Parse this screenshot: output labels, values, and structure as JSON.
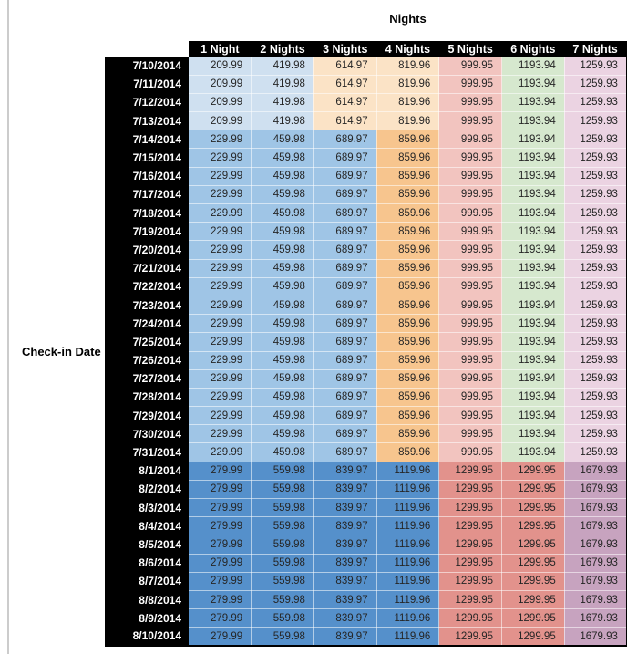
{
  "page": {
    "title": "Nights",
    "row_axis_label": "Check-in Date"
  },
  "colors": {
    "header_bg": "#000000",
    "header_text": "#ffffff",
    "cell_text": "#262626",
    "left_rule": "#cccccc",
    "table_border": "#000000",
    "group_cell_colors": {
      "low": [
        "#cfe0f0",
        "#cfe0f0",
        "#fbe3c6",
        "#fbe3c6",
        "#f2c4bf",
        "#d6e8ce",
        "#ebd3e2"
      ],
      "mid": [
        "#9fc5e6",
        "#9fc5e6",
        "#9fc5e6",
        "#f7c58e",
        "#f2c4bf",
        "#d6e8ce",
        "#ebd3e2"
      ],
      "high": [
        "#5590cb",
        "#5590cb",
        "#5590cb",
        "#5590cb",
        "#e2928c",
        "#e2928c",
        "#c7a3bf"
      ]
    }
  },
  "chart_data": {
    "type": "table",
    "title": "Nights",
    "row_header_label": "Check-in Date",
    "columns": [
      "1 Night",
      "2 Nights",
      "3 Nights",
      "4 Nights",
      "5 Nights",
      "6 Nights",
      "7 Nights"
    ],
    "rows": [
      {
        "date": "7/10/2014",
        "group": "low",
        "values": [
          209.99,
          419.98,
          614.97,
          819.96,
          999.95,
          1193.94,
          1259.93
        ]
      },
      {
        "date": "7/11/2014",
        "group": "low",
        "values": [
          209.99,
          419.98,
          614.97,
          819.96,
          999.95,
          1193.94,
          1259.93
        ]
      },
      {
        "date": "7/12/2014",
        "group": "low",
        "values": [
          209.99,
          419.98,
          614.97,
          819.96,
          999.95,
          1193.94,
          1259.93
        ]
      },
      {
        "date": "7/13/2014",
        "group": "low",
        "values": [
          209.99,
          419.98,
          614.97,
          819.96,
          999.95,
          1193.94,
          1259.93
        ]
      },
      {
        "date": "7/14/2014",
        "group": "mid",
        "values": [
          229.99,
          459.98,
          689.97,
          859.96,
          999.95,
          1193.94,
          1259.93
        ]
      },
      {
        "date": "7/15/2014",
        "group": "mid",
        "values": [
          229.99,
          459.98,
          689.97,
          859.96,
          999.95,
          1193.94,
          1259.93
        ]
      },
      {
        "date": "7/16/2014",
        "group": "mid",
        "values": [
          229.99,
          459.98,
          689.97,
          859.96,
          999.95,
          1193.94,
          1259.93
        ]
      },
      {
        "date": "7/17/2014",
        "group": "mid",
        "values": [
          229.99,
          459.98,
          689.97,
          859.96,
          999.95,
          1193.94,
          1259.93
        ]
      },
      {
        "date": "7/18/2014",
        "group": "mid",
        "values": [
          229.99,
          459.98,
          689.97,
          859.96,
          999.95,
          1193.94,
          1259.93
        ]
      },
      {
        "date": "7/19/2014",
        "group": "mid",
        "values": [
          229.99,
          459.98,
          689.97,
          859.96,
          999.95,
          1193.94,
          1259.93
        ]
      },
      {
        "date": "7/20/2014",
        "group": "mid",
        "values": [
          229.99,
          459.98,
          689.97,
          859.96,
          999.95,
          1193.94,
          1259.93
        ]
      },
      {
        "date": "7/21/2014",
        "group": "mid",
        "values": [
          229.99,
          459.98,
          689.97,
          859.96,
          999.95,
          1193.94,
          1259.93
        ]
      },
      {
        "date": "7/22/2014",
        "group": "mid",
        "values": [
          229.99,
          459.98,
          689.97,
          859.96,
          999.95,
          1193.94,
          1259.93
        ]
      },
      {
        "date": "7/23/2014",
        "group": "mid",
        "values": [
          229.99,
          459.98,
          689.97,
          859.96,
          999.95,
          1193.94,
          1259.93
        ]
      },
      {
        "date": "7/24/2014",
        "group": "mid",
        "values": [
          229.99,
          459.98,
          689.97,
          859.96,
          999.95,
          1193.94,
          1259.93
        ]
      },
      {
        "date": "7/25/2014",
        "group": "mid",
        "values": [
          229.99,
          459.98,
          689.97,
          859.96,
          999.95,
          1193.94,
          1259.93
        ]
      },
      {
        "date": "7/26/2014",
        "group": "mid",
        "values": [
          229.99,
          459.98,
          689.97,
          859.96,
          999.95,
          1193.94,
          1259.93
        ]
      },
      {
        "date": "7/27/2014",
        "group": "mid",
        "values": [
          229.99,
          459.98,
          689.97,
          859.96,
          999.95,
          1193.94,
          1259.93
        ]
      },
      {
        "date": "7/28/2014",
        "group": "mid",
        "values": [
          229.99,
          459.98,
          689.97,
          859.96,
          999.95,
          1193.94,
          1259.93
        ]
      },
      {
        "date": "7/29/2014",
        "group": "mid",
        "values": [
          229.99,
          459.98,
          689.97,
          859.96,
          999.95,
          1193.94,
          1259.93
        ]
      },
      {
        "date": "7/30/2014",
        "group": "mid",
        "values": [
          229.99,
          459.98,
          689.97,
          859.96,
          999.95,
          1193.94,
          1259.93
        ]
      },
      {
        "date": "7/31/2014",
        "group": "mid",
        "values": [
          229.99,
          459.98,
          689.97,
          859.96,
          999.95,
          1193.94,
          1259.93
        ]
      },
      {
        "date": "8/1/2014",
        "group": "high",
        "values": [
          279.99,
          559.98,
          839.97,
          1119.96,
          1299.95,
          1299.95,
          1679.93
        ]
      },
      {
        "date": "8/2/2014",
        "group": "high",
        "values": [
          279.99,
          559.98,
          839.97,
          1119.96,
          1299.95,
          1299.95,
          1679.93
        ]
      },
      {
        "date": "8/3/2014",
        "group": "high",
        "values": [
          279.99,
          559.98,
          839.97,
          1119.96,
          1299.95,
          1299.95,
          1679.93
        ]
      },
      {
        "date": "8/4/2014",
        "group": "high",
        "values": [
          279.99,
          559.98,
          839.97,
          1119.96,
          1299.95,
          1299.95,
          1679.93
        ]
      },
      {
        "date": "8/5/2014",
        "group": "high",
        "values": [
          279.99,
          559.98,
          839.97,
          1119.96,
          1299.95,
          1299.95,
          1679.93
        ]
      },
      {
        "date": "8/6/2014",
        "group": "high",
        "values": [
          279.99,
          559.98,
          839.97,
          1119.96,
          1299.95,
          1299.95,
          1679.93
        ]
      },
      {
        "date": "8/7/2014",
        "group": "high",
        "values": [
          279.99,
          559.98,
          839.97,
          1119.96,
          1299.95,
          1299.95,
          1679.93
        ]
      },
      {
        "date": "8/8/2014",
        "group": "high",
        "values": [
          279.99,
          559.98,
          839.97,
          1119.96,
          1299.95,
          1299.95,
          1679.93
        ]
      },
      {
        "date": "8/9/2014",
        "group": "high",
        "values": [
          279.99,
          559.98,
          839.97,
          1119.96,
          1299.95,
          1299.95,
          1679.93
        ]
      },
      {
        "date": "8/10/2014",
        "group": "high",
        "values": [
          279.99,
          559.98,
          839.97,
          1119.96,
          1299.95,
          1299.95,
          1679.93
        ]
      }
    ]
  }
}
